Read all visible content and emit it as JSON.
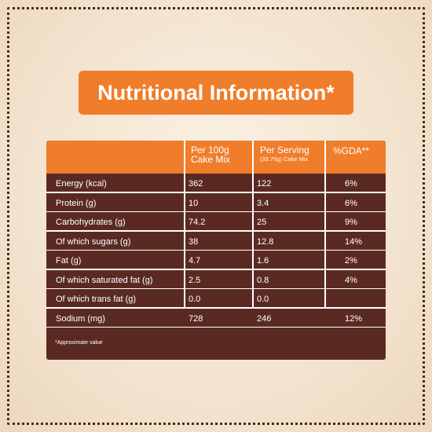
{
  "title": "Nutritional Information*",
  "header": {
    "col1_line1": "Per 100g",
    "col1_line2": "Cake Mix",
    "col2_line1": "Per Serving",
    "col2_line2": "(33.75g) Cake Mix",
    "col3": "%GDA**"
  },
  "rows": [
    {
      "name": "Energy (kcal)",
      "per100": "362",
      "serving": "122",
      "gda": "6%"
    },
    {
      "name": "Protein (g)",
      "per100": "10",
      "serving": "3.4",
      "gda": "6%"
    },
    {
      "name": "Carbohydrates (g)",
      "per100": "74.2",
      "serving": "25",
      "gda": "9%"
    },
    {
      "name": "Of which sugars (g)",
      "per100": "38",
      "serving": "12.8",
      "gda": "14%"
    },
    {
      "name": "Fat (g)",
      "per100": "4.7",
      "serving": "1.6",
      "gda": "2%"
    },
    {
      "name": "Of which saturated fat (g)",
      "per100": "2.5",
      "serving": "0.8",
      "gda": "4%"
    },
    {
      "name": "Of which trans fat (g)",
      "per100": "0.0",
      "serving": "0.0",
      "gda": ""
    },
    {
      "name": "Sodium (mg)",
      "per100": "728",
      "serving": "246",
      "gda": "12%"
    }
  ],
  "footnote": "*Approximate value",
  "colors": {
    "orange": "#f07d2a",
    "brown": "#5a2a22",
    "border_dots": "#4a2a1c"
  }
}
